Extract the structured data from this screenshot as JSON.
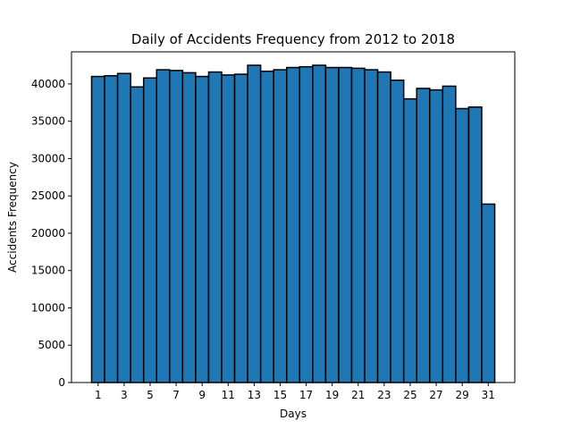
{
  "chart_data": {
    "type": "bar",
    "title": "Daily of Accidents Frequency from 2012 to 2018",
    "xlabel": "Days",
    "ylabel": "Accidents Frequency",
    "categories": [
      1,
      2,
      3,
      4,
      5,
      6,
      7,
      8,
      9,
      10,
      11,
      12,
      13,
      14,
      15,
      16,
      17,
      18,
      19,
      20,
      21,
      22,
      23,
      24,
      25,
      26,
      27,
      28,
      29,
      30,
      31
    ],
    "values": [
      41000,
      41100,
      41400,
      39600,
      40800,
      41900,
      41800,
      41500,
      41000,
      41600,
      41200,
      41300,
      42500,
      41700,
      41900,
      42200,
      42300,
      42500,
      42200,
      42200,
      42100,
      41900,
      41600,
      40500,
      38000,
      39400,
      39200,
      39700,
      36700,
      36900,
      23900
    ],
    "x_ticks": [
      1,
      3,
      5,
      7,
      9,
      11,
      13,
      15,
      17,
      19,
      21,
      23,
      25,
      27,
      29,
      31
    ],
    "y_ticks": [
      0,
      5000,
      10000,
      15000,
      20000,
      25000,
      30000,
      35000,
      40000
    ],
    "ylim": [
      0,
      44300
    ],
    "grid": false,
    "bar_color": "#1f77b4",
    "edge_color": "#000000"
  }
}
